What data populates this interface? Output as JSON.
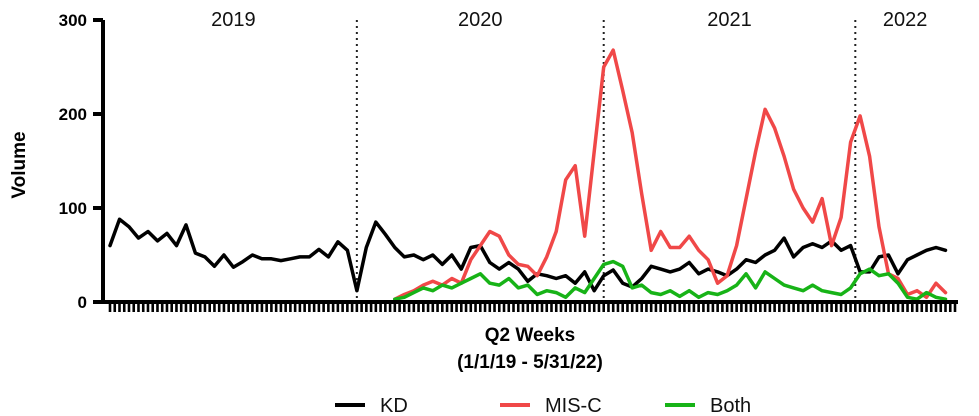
{
  "chart_data": {
    "type": "line",
    "xlabel_line1": "Q2 Weeks",
    "xlabel_line2": "(1/1/19 - 5/31/22)",
    "ylabel": "Volume",
    "ylim": [
      0,
      300
    ],
    "yticks": [
      0,
      100,
      200,
      300
    ],
    "x_range_weeks": [
      0,
      178
    ],
    "periods": [
      {
        "label": "2019",
        "start_week": 0,
        "end_week": 52
      },
      {
        "label": "2020",
        "start_week": 52,
        "end_week": 104
      },
      {
        "label": "2021",
        "start_week": 104,
        "end_week": 157
      },
      {
        "label": "2022",
        "start_week": 157,
        "end_week": 178
      }
    ],
    "divider_weeks": [
      52,
      104,
      157
    ],
    "series": [
      {
        "name": "KD",
        "color": "#000000",
        "points": [
          [
            0,
            60
          ],
          [
            2,
            88
          ],
          [
            4,
            80
          ],
          [
            6,
            68
          ],
          [
            8,
            75
          ],
          [
            10,
            65
          ],
          [
            12,
            73
          ],
          [
            14,
            60
          ],
          [
            16,
            82
          ],
          [
            18,
            52
          ],
          [
            20,
            48
          ],
          [
            22,
            38
          ],
          [
            24,
            50
          ],
          [
            26,
            37
          ],
          [
            28,
            43
          ],
          [
            30,
            50
          ],
          [
            32,
            46
          ],
          [
            34,
            46
          ],
          [
            36,
            44
          ],
          [
            38,
            46
          ],
          [
            40,
            48
          ],
          [
            42,
            48
          ],
          [
            44,
            56
          ],
          [
            46,
            48
          ],
          [
            48,
            64
          ],
          [
            50,
            55
          ],
          [
            52,
            12
          ],
          [
            54,
            58
          ],
          [
            56,
            85
          ],
          [
            58,
            72
          ],
          [
            60,
            58
          ],
          [
            62,
            48
          ],
          [
            64,
            50
          ],
          [
            66,
            45
          ],
          [
            68,
            50
          ],
          [
            70,
            40
          ],
          [
            72,
            50
          ],
          [
            74,
            35
          ],
          [
            76,
            58
          ],
          [
            78,
            60
          ],
          [
            80,
            42
          ],
          [
            82,
            35
          ],
          [
            84,
            42
          ],
          [
            86,
            35
          ],
          [
            88,
            22
          ],
          [
            90,
            30
          ],
          [
            92,
            28
          ],
          [
            94,
            25
          ],
          [
            96,
            28
          ],
          [
            98,
            20
          ],
          [
            100,
            32
          ],
          [
            102,
            12
          ],
          [
            104,
            28
          ],
          [
            106,
            34
          ],
          [
            108,
            20
          ],
          [
            110,
            16
          ],
          [
            112,
            25
          ],
          [
            114,
            38
          ],
          [
            116,
            35
          ],
          [
            118,
            32
          ],
          [
            120,
            35
          ],
          [
            122,
            42
          ],
          [
            124,
            30
          ],
          [
            126,
            35
          ],
          [
            128,
            32
          ],
          [
            130,
            28
          ],
          [
            132,
            35
          ],
          [
            134,
            45
          ],
          [
            136,
            42
          ],
          [
            138,
            50
          ],
          [
            140,
            55
          ],
          [
            142,
            68
          ],
          [
            144,
            48
          ],
          [
            146,
            58
          ],
          [
            148,
            62
          ],
          [
            150,
            58
          ],
          [
            152,
            65
          ],
          [
            154,
            55
          ],
          [
            156,
            60
          ],
          [
            158,
            32
          ],
          [
            160,
            32
          ],
          [
            162,
            48
          ],
          [
            164,
            50
          ],
          [
            166,
            30
          ],
          [
            168,
            45
          ],
          [
            170,
            50
          ],
          [
            172,
            55
          ],
          [
            174,
            58
          ],
          [
            176,
            55
          ]
        ]
      },
      {
        "name": "MIS-C",
        "color": "#f04848",
        "points": [
          [
            60,
            3
          ],
          [
            62,
            8
          ],
          [
            64,
            12
          ],
          [
            66,
            18
          ],
          [
            68,
            22
          ],
          [
            70,
            18
          ],
          [
            72,
            25
          ],
          [
            74,
            20
          ],
          [
            76,
            45
          ],
          [
            78,
            60
          ],
          [
            80,
            75
          ],
          [
            82,
            70
          ],
          [
            84,
            50
          ],
          [
            86,
            40
          ],
          [
            88,
            38
          ],
          [
            90,
            28
          ],
          [
            92,
            48
          ],
          [
            94,
            75
          ],
          [
            96,
            130
          ],
          [
            98,
            145
          ],
          [
            100,
            70
          ],
          [
            102,
            160
          ],
          [
            104,
            250
          ],
          [
            106,
            268
          ],
          [
            108,
            225
          ],
          [
            110,
            180
          ],
          [
            112,
            115
          ],
          [
            114,
            55
          ],
          [
            116,
            75
          ],
          [
            118,
            58
          ],
          [
            120,
            58
          ],
          [
            122,
            70
          ],
          [
            124,
            55
          ],
          [
            126,
            45
          ],
          [
            128,
            20
          ],
          [
            130,
            28
          ],
          [
            132,
            60
          ],
          [
            134,
            110
          ],
          [
            136,
            160
          ],
          [
            138,
            205
          ],
          [
            140,
            185
          ],
          [
            142,
            155
          ],
          [
            144,
            120
          ],
          [
            146,
            100
          ],
          [
            148,
            85
          ],
          [
            150,
            110
          ],
          [
            152,
            60
          ],
          [
            154,
            90
          ],
          [
            156,
            170
          ],
          [
            158,
            198
          ],
          [
            160,
            155
          ],
          [
            162,
            80
          ],
          [
            164,
            30
          ],
          [
            166,
            25
          ],
          [
            168,
            8
          ],
          [
            170,
            12
          ],
          [
            172,
            5
          ],
          [
            174,
            20
          ],
          [
            176,
            10
          ]
        ]
      },
      {
        "name": "Both",
        "color": "#17b317",
        "points": [
          [
            60,
            3
          ],
          [
            62,
            5
          ],
          [
            64,
            10
          ],
          [
            66,
            15
          ],
          [
            68,
            12
          ],
          [
            70,
            18
          ],
          [
            72,
            15
          ],
          [
            74,
            20
          ],
          [
            76,
            25
          ],
          [
            78,
            30
          ],
          [
            80,
            20
          ],
          [
            82,
            18
          ],
          [
            84,
            25
          ],
          [
            86,
            15
          ],
          [
            88,
            18
          ],
          [
            90,
            8
          ],
          [
            92,
            12
          ],
          [
            94,
            10
          ],
          [
            96,
            5
          ],
          [
            98,
            15
          ],
          [
            100,
            10
          ],
          [
            102,
            25
          ],
          [
            104,
            40
          ],
          [
            106,
            43
          ],
          [
            108,
            38
          ],
          [
            110,
            15
          ],
          [
            112,
            18
          ],
          [
            114,
            10
          ],
          [
            116,
            8
          ],
          [
            118,
            12
          ],
          [
            120,
            6
          ],
          [
            122,
            12
          ],
          [
            124,
            5
          ],
          [
            126,
            10
          ],
          [
            128,
            8
          ],
          [
            130,
            12
          ],
          [
            132,
            18
          ],
          [
            134,
            30
          ],
          [
            136,
            15
          ],
          [
            138,
            32
          ],
          [
            140,
            25
          ],
          [
            142,
            18
          ],
          [
            144,
            15
          ],
          [
            146,
            12
          ],
          [
            148,
            18
          ],
          [
            150,
            12
          ],
          [
            152,
            10
          ],
          [
            154,
            8
          ],
          [
            156,
            15
          ],
          [
            158,
            30
          ],
          [
            160,
            35
          ],
          [
            162,
            28
          ],
          [
            164,
            30
          ],
          [
            166,
            20
          ],
          [
            168,
            5
          ],
          [
            170,
            3
          ],
          [
            172,
            10
          ],
          [
            174,
            5
          ],
          [
            176,
            3
          ]
        ]
      }
    ],
    "legend": {
      "placement": "bottom",
      "entries": [
        "KD",
        "MIS-C",
        "Both"
      ]
    }
  }
}
